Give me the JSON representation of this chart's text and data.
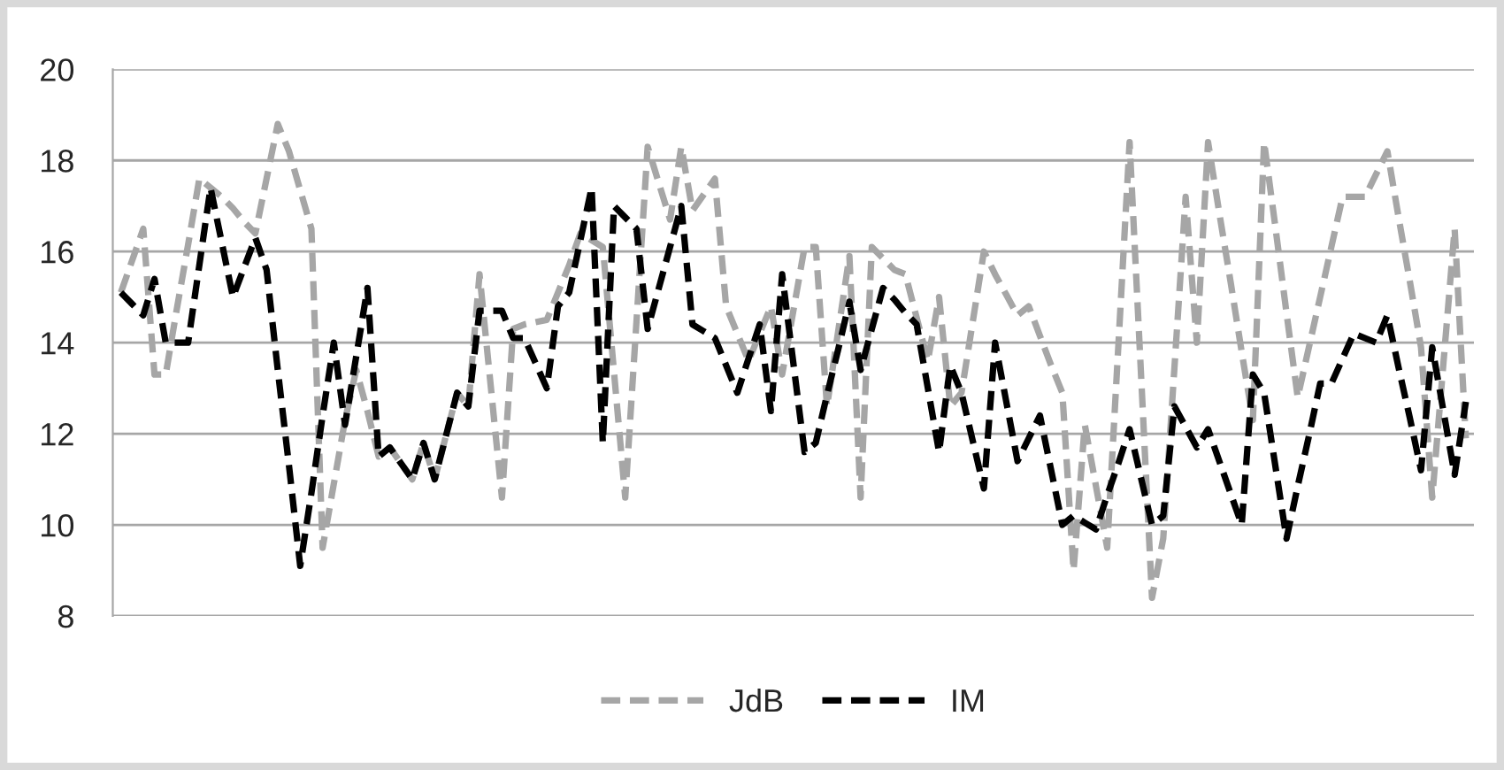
{
  "chart_data": {
    "type": "line",
    "ylim": [
      8,
      20
    ],
    "yticks": [
      8,
      10,
      12,
      14,
      16,
      18,
      20
    ],
    "grid": "y",
    "legend": "bottom",
    "line_style": "dashed",
    "tick_labels": "y",
    "categories": [
      null,
      null,
      null,
      null,
      null,
      null,
      null,
      null,
      null,
      null,
      null,
      null,
      null,
      null,
      null,
      null,
      null,
      null,
      null,
      null,
      null,
      null,
      null,
      null,
      null,
      null,
      null,
      null,
      null,
      null,
      null,
      null,
      null,
      null,
      null,
      null,
      null,
      null,
      null,
      null,
      null,
      null,
      null,
      null,
      null,
      null,
      null,
      null,
      null,
      null,
      null,
      null,
      null,
      null,
      null,
      null,
      null,
      null,
      null,
      null,
      null,
      null,
      null,
      null,
      null,
      null,
      null,
      null,
      null,
      null,
      null,
      null,
      null,
      null,
      null,
      null,
      null,
      null,
      null,
      null,
      null,
      null,
      null,
      null,
      null,
      null,
      null,
      null,
      null,
      null,
      null,
      null,
      null,
      null,
      null,
      null,
      null,
      null,
      null,
      null,
      null,
      null,
      null,
      null,
      null,
      null,
      null,
      null,
      null,
      null,
      null,
      null,
      null,
      null,
      null,
      null,
      null,
      null,
      null,
      null,
      null
    ],
    "series": [
      {
        "name": "JdB",
        "color": "#a6a6a6",
        "values": [
          15.1,
          15.8,
          16.5,
          13.3,
          13.3,
          14.75,
          16.15,
          17.6,
          17.4,
          17.2,
          16.95,
          16.65,
          16.4,
          17.6,
          18.8,
          18.2,
          17.35,
          16.5,
          9.5,
          10.9,
          12.3,
          13.4,
          12.5,
          11.5,
          11.7,
          11.35,
          11.0,
          11.8,
          11.0,
          11.95,
          12.9,
          12.6,
          15.5,
          13.05,
          10.6,
          14.3,
          14.4,
          14.45,
          14.5,
          15.1,
          15.7,
          16.4,
          16.25,
          16.1,
          13.35,
          10.6,
          14.45,
          18.3,
          17.5,
          16.7,
          18.3,
          16.9,
          17.25,
          17.6,
          14.8,
          14.2,
          13.6,
          14.2,
          14.8,
          13.3,
          14.7,
          16.1,
          16.1,
          12.6,
          14.25,
          15.9,
          10.6,
          16.1,
          15.85,
          15.6,
          15.5,
          14.55,
          13.6,
          15.0,
          12.6,
          12.9,
          14.45,
          16.0,
          15.5,
          15.05,
          14.6,
          14.8,
          14.15,
          13.5,
          12.9,
          9.0,
          12.2,
          10.85,
          9.5,
          13.95,
          18.4,
          13.4,
          8.4,
          9.7,
          13.45,
          17.2,
          14.0,
          18.4,
          16.85,
          15.35,
          13.8,
          12.3,
          18.4,
          16.55,
          14.65,
          12.8,
          13.9,
          15.0,
          16.1,
          17.2,
          17.2,
          17.2,
          17.7,
          18.2,
          16.75,
          15.35,
          13.9,
          10.6,
          13.55,
          16.5,
          11.9
        ]
      },
      {
        "name": "IM",
        "color": "#000000",
        "values": [
          15.1,
          14.85,
          14.6,
          15.4,
          14.0,
          14.0,
          14.0,
          15.7,
          17.4,
          16.2,
          15.0,
          15.65,
          16.3,
          15.6,
          13.4,
          11.3,
          9.1,
          10.7,
          12.4,
          14.0,
          12.2,
          13.7,
          15.2,
          11.5,
          11.7,
          11.35,
          11.0,
          11.8,
          11.0,
          11.95,
          12.9,
          12.6,
          14.7,
          14.7,
          14.7,
          14.1,
          14.1,
          13.55,
          13.0,
          14.8,
          15.1,
          16.25,
          17.4,
          11.8,
          17.0,
          16.75,
          16.5,
          14.3,
          15.2,
          16.1,
          17.0,
          14.4,
          14.25,
          14.1,
          13.5,
          12.9,
          13.65,
          14.4,
          12.5,
          15.5,
          13.55,
          11.6,
          11.8,
          12.85,
          13.85,
          14.9,
          13.4,
          14.3,
          15.2,
          14.95,
          14.65,
          14.4,
          13.0,
          11.6,
          13.5,
          12.9,
          11.85,
          10.8,
          14.0,
          12.7,
          11.4,
          11.9,
          12.4,
          11.2,
          10.0,
          10.2,
          10.05,
          9.9,
          10.65,
          11.35,
          12.1,
          11.05,
          10.0,
          10.2,
          12.6,
          12.15,
          11.7,
          12.1,
          11.4,
          10.7,
          10.0,
          13.3,
          12.9,
          11.3,
          9.7,
          10.85,
          11.95,
          13.1,
          13.1,
          13.65,
          14.2,
          14.1,
          14.0,
          14.6,
          13.45,
          12.35,
          11.2,
          13.9,
          12.5,
          11.1,
          12.7
        ]
      }
    ]
  }
}
